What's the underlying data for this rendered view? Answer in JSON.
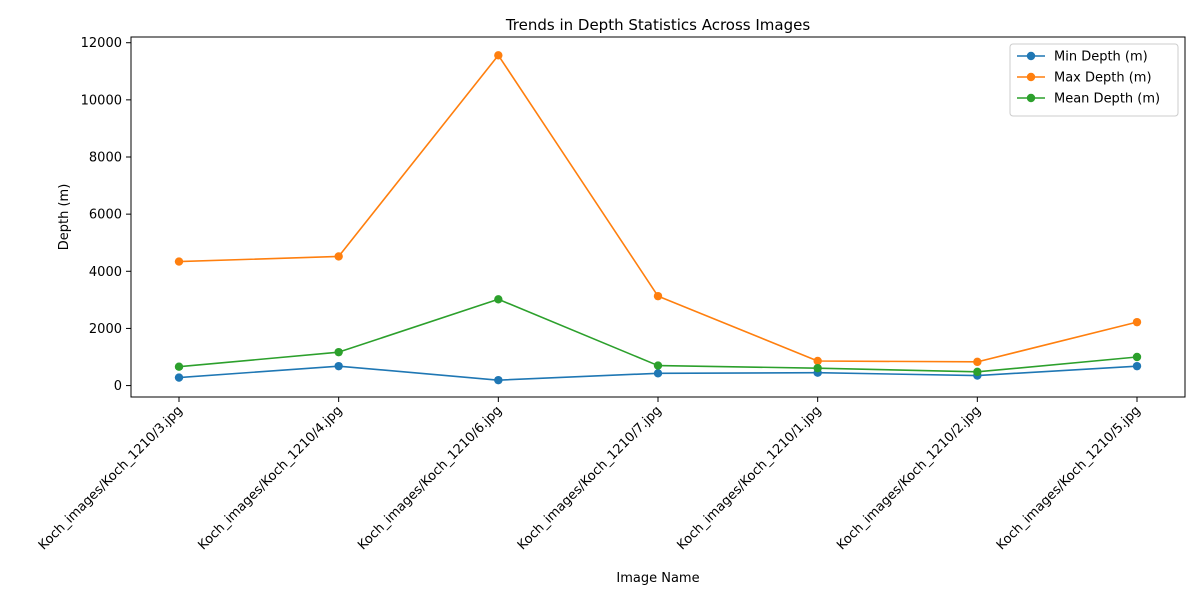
{
  "chart_data": {
    "type": "line",
    "title": "Trends in Depth Statistics Across Images",
    "xlabel": "Image Name",
    "ylabel": "Depth (m)",
    "categories": [
      "Koch_images/Koch_1210/3.jpg",
      "Koch_images/Koch_1210/4.jpg",
      "Koch_images/Koch_1210/6.jpg",
      "Koch_images/Koch_1210/7.jpg",
      "Koch_images/Koch_1210/1.jpg",
      "Koch_images/Koch_1210/2.jpg",
      "Koch_images/Koch_1210/5.jpg"
    ],
    "series": [
      {
        "name": "Min Depth (m)",
        "color": "#1f77b4",
        "values": [
          280,
          680,
          190,
          430,
          450,
          350,
          680
        ]
      },
      {
        "name": "Max Depth (m)",
        "color": "#ff7f0e",
        "values": [
          4340,
          4520,
          11560,
          3130,
          860,
          830,
          2220
        ]
      },
      {
        "name": "Mean Depth (m)",
        "color": "#2ca02c",
        "values": [
          660,
          1170,
          3020,
          700,
          610,
          480,
          1000
        ]
      }
    ],
    "ylim": [
      -400,
      12200
    ],
    "yticks": [
      0,
      2000,
      4000,
      6000,
      8000,
      10000,
      12000
    ],
    "grid": false,
    "legend_position": "top-right",
    "marker": "circle"
  }
}
